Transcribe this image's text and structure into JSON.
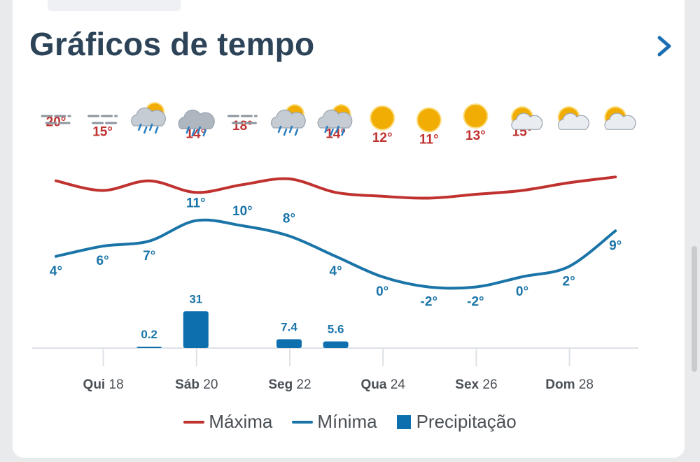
{
  "title": "Gráficos de tempo",
  "colors": {
    "max": "#c0322f",
    "min": "#1a74a8",
    "precip": "#0e6fae",
    "title": "#2c4358",
    "tick": "#4a4f55"
  },
  "legend": [
    {
      "label": "Máxima",
      "kind": "line",
      "color": "#c0322f"
    },
    {
      "label": "Mínima",
      "kind": "line",
      "color": "#1a74a8"
    },
    {
      "label": "Precipitação",
      "kind": "box",
      "color": "#0e6fae"
    }
  ],
  "chart_data": {
    "type": "line",
    "icons": [
      "fog-icon",
      "fog-icon",
      "sun-cloud-rain-icon",
      "cloud-rain-icon",
      "fog-icon",
      "sun-cloud-rain-icon",
      "sun-cloud-rain-icon",
      "sun-icon",
      "sun-icon",
      "sun-icon",
      "sun-cloud-icon",
      "sun-cloud-icon",
      "sun-cloud-icon"
    ],
    "x_ticks": [
      {
        "day": "Qui",
        "date": "18",
        "index": 1
      },
      {
        "day": "Sáb",
        "date": "20",
        "index": 3
      },
      {
        "day": "Seg",
        "date": "22",
        "index": 5
      },
      {
        "day": "Qua",
        "date": "24",
        "index": 7
      },
      {
        "day": "Sex",
        "date": "26",
        "index": 9
      },
      {
        "day": "Dom",
        "date": "28",
        "index": 11
      }
    ],
    "series": [
      {
        "name": "Máxima",
        "values": [
          20,
          15,
          20,
          14,
          18,
          21,
          14,
          12,
          11,
          13,
          15,
          19,
          22
        ]
      },
      {
        "name": "Mínima",
        "values": [
          4,
          6,
          7,
          11,
          10,
          8,
          4,
          0,
          -2,
          -2,
          0,
          2,
          9
        ]
      }
    ],
    "precipitation": [
      {
        "index": 2,
        "value": 0.2,
        "label": "0.2"
      },
      {
        "index": 3,
        "value": 31,
        "label": "31"
      },
      {
        "index": 5,
        "value": 7.4,
        "label": "7.4"
      },
      {
        "index": 6,
        "value": 5.6,
        "label": "5.6"
      }
    ],
    "grid": false
  }
}
